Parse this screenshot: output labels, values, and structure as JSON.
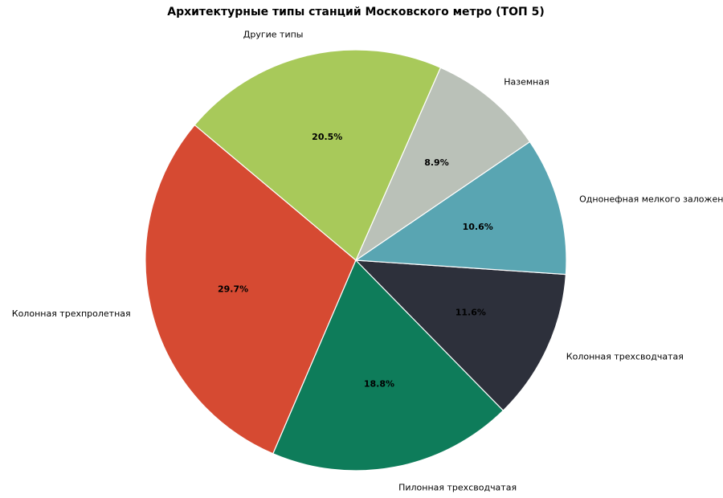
{
  "chart_data": {
    "type": "pie",
    "title": "Архитектурные типы станций Московского метро (ТОП 5)",
    "categories": [
      "Колонная трехпролетная",
      "Пилонная трехсводчатая",
      "Колонная трехсводчатая",
      "Однонефная мелкого заложения",
      "Наземная",
      "Другие типы"
    ],
    "values": [
      29.7,
      18.8,
      11.6,
      10.6,
      8.9,
      20.5
    ],
    "value_labels": [
      "29.7%",
      "18.8%",
      "11.6%",
      "10.6%",
      "8.9%",
      "20.5%"
    ],
    "colors": [
      "#d64a32",
      "#0e7c5a",
      "#2d303b",
      "#59a5b2",
      "#bac1b8",
      "#a8c95a"
    ],
    "startangle": 140
  }
}
